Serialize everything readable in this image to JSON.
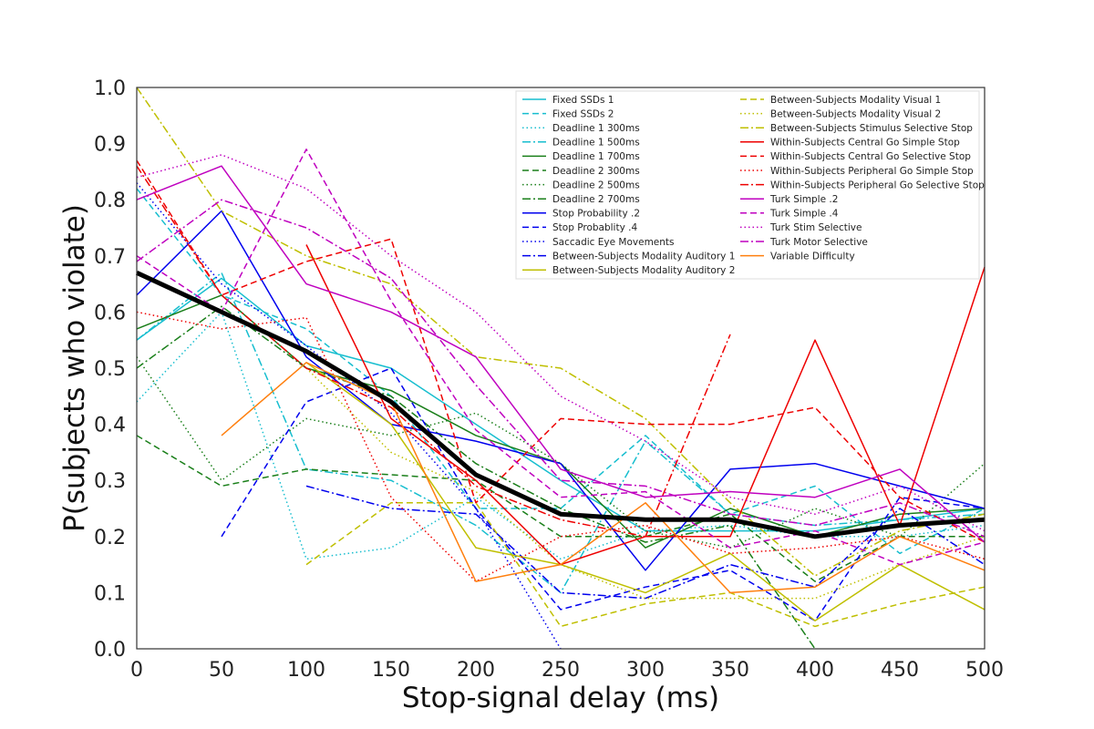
{
  "chart_data": {
    "type": "line",
    "title": "",
    "xlabel": "Stop-signal delay (ms)",
    "ylabel": "P(subjects who violate)",
    "xlim": [
      0,
      500
    ],
    "ylim": [
      0,
      1
    ],
    "xticks": [
      0,
      50,
      100,
      150,
      200,
      250,
      300,
      350,
      400,
      450,
      500
    ],
    "yticks": [
      "0.0",
      "0.1",
      "0.2",
      "0.3",
      "0.4",
      "0.5",
      "0.6",
      "0.7",
      "0.8",
      "0.9",
      "1.0"
    ],
    "grid": false,
    "legend_position": "top-right",
    "x": [
      0,
      50,
      100,
      150,
      200,
      250,
      300,
      350,
      400,
      450,
      500
    ],
    "series": [
      {
        "name": "Fixed SSDs 1",
        "color": "#17becf",
        "dash": "solid",
        "values": [
          0.55,
          0.66,
          0.54,
          0.5,
          0.4,
          0.3,
          0.21,
          0.21,
          0.21,
          0.23,
          0.25
        ]
      },
      {
        "name": "Fixed SSDs 2",
        "color": "#17becf",
        "dash": "dashed",
        "values": [
          0.82,
          0.63,
          0.57,
          0.45,
          0.25,
          0.25,
          0.38,
          0.24,
          0.29,
          0.17,
          0.25
        ]
      },
      {
        "name": "Deadline 1 300ms",
        "color": "#17becf",
        "dash": "dotted",
        "values": [
          0.44,
          0.6,
          0.16,
          0.18,
          0.27,
          0.16,
          0.21,
          0.22,
          0.2,
          0.2,
          0.22
        ]
      },
      {
        "name": "Deadline 1 500ms",
        "color": "#17becf",
        "dash": "dashdot",
        "values": [
          0.55,
          0.67,
          0.32,
          0.3,
          0.22,
          0.1,
          0.37,
          0.24,
          0.22,
          0.23,
          0.24
        ]
      },
      {
        "name": "Deadline 1 700ms",
        "color": "#1a7f1a",
        "dash": "solid",
        "values": [
          0.57,
          0.63,
          0.5,
          0.46,
          0.38,
          0.33,
          0.18,
          0.25,
          0.2,
          0.24,
          0.25
        ]
      },
      {
        "name": "Deadline 2 300ms",
        "color": "#1a7f1a",
        "dash": "dashed",
        "values": [
          0.38,
          0.29,
          0.32,
          0.31,
          0.3,
          0.2,
          0.2,
          0.24,
          0.12,
          0.2,
          0.2
        ]
      },
      {
        "name": "Deadline 2 500ms",
        "color": "#1a7f1a",
        "dash": "dotted",
        "values": [
          0.52,
          0.3,
          0.41,
          0.38,
          0.42,
          0.33,
          0.21,
          0.18,
          0.25,
          0.2,
          0.33
        ]
      },
      {
        "name": "Deadline 2 700ms",
        "color": "#1a7f1a",
        "dash": "dashdot",
        "values": [
          0.5,
          0.61,
          0.5,
          0.45,
          0.33,
          0.25,
          0.19,
          0.22,
          0.0,
          null,
          0.34
        ]
      },
      {
        "name": "Stop Probability .2",
        "color": "#0000ee",
        "dash": "solid",
        "values": [
          0.63,
          0.78,
          0.52,
          0.4,
          0.37,
          0.33,
          0.14,
          0.32,
          0.33,
          0.29,
          0.25
        ]
      },
      {
        "name": "Stop Probablity .4",
        "color": "#0000ee",
        "dash": "dashed",
        "values": [
          null,
          0.2,
          0.44,
          0.5,
          0.25,
          0.07,
          0.11,
          0.14,
          0.05,
          0.27,
          0.25
        ]
      },
      {
        "name": "Saccadic Eye Movements",
        "color": "#0000ee",
        "dash": "dotted",
        "values": [
          0.83,
          0.65,
          0.54,
          0.42,
          0.25,
          0.0,
          null,
          null,
          null,
          null,
          null
        ]
      },
      {
        "name": "Between-Subjects Modality Auditory 1",
        "color": "#0000ee",
        "dash": "dashdot",
        "values": [
          null,
          null,
          0.29,
          0.25,
          0.24,
          0.1,
          0.09,
          0.15,
          0.11,
          0.25,
          0.15
        ]
      },
      {
        "name": "Between-Subjects Modality Auditory 2",
        "color": "#bfbf00",
        "dash": "solid",
        "values": [
          null,
          null,
          0.51,
          0.4,
          0.18,
          0.15,
          0.1,
          0.17,
          0.05,
          0.15,
          0.07
        ]
      },
      {
        "name": "Between-Subjects Modality Visual 1",
        "color": "#bfbf00",
        "dash": "dashed",
        "values": [
          null,
          null,
          0.15,
          0.26,
          0.26,
          0.04,
          0.08,
          0.1,
          0.04,
          0.08,
          0.11
        ]
      },
      {
        "name": "Between-Subjects Modality Visual 2",
        "color": "#bfbf00",
        "dash": "dotted",
        "values": [
          null,
          null,
          0.5,
          0.35,
          0.28,
          0.15,
          0.09,
          0.09,
          0.09,
          0.15,
          0.2
        ]
      },
      {
        "name": "Between-Subjects Stimulus Selective Stop",
        "color": "#bfbf00",
        "dash": "dashdot",
        "values": [
          1.0,
          0.78,
          0.7,
          0.65,
          0.52,
          0.5,
          0.41,
          0.26,
          0.13,
          0.21,
          0.24
        ]
      },
      {
        "name": "Within-Subjects Central Go Simple Stop",
        "color": "#ee0000",
        "dash": "solid",
        "values": [
          null,
          null,
          0.72,
          0.41,
          0.3,
          0.15,
          0.2,
          0.2,
          0.55,
          0.22,
          0.68
        ]
      },
      {
        "name": "Within-Subjects Central Go Selective Stop",
        "color": "#ee0000",
        "dash": "dashed",
        "values": [
          0.87,
          0.63,
          0.69,
          0.73,
          0.26,
          0.41,
          0.4,
          0.4,
          0.43,
          0.27,
          0.19
        ]
      },
      {
        "name": "Within-Subjects Peripheral Go Simple Stop",
        "color": "#ee0000",
        "dash": "dotted",
        "values": [
          0.6,
          0.57,
          0.59,
          0.27,
          0.12,
          0.2,
          0.22,
          0.17,
          0.18,
          0.2,
          0.16
        ]
      },
      {
        "name": "Within-Subjects Peripheral Go Selective Stop",
        "color": "#ee0000",
        "dash": "dashdot",
        "values": [
          0.86,
          0.63,
          0.5,
          0.43,
          0.29,
          0.23,
          0.2,
          0.56,
          null,
          null,
          null
        ]
      },
      {
        "name": "Turk Simple .2",
        "color": "#bf00bf",
        "dash": "solid",
        "values": [
          0.8,
          0.86,
          0.65,
          0.6,
          0.52,
          0.32,
          0.27,
          0.28,
          0.27,
          0.32,
          0.19
        ]
      },
      {
        "name": "Turk Simple .4",
        "color": "#bf00bf",
        "dash": "dashed",
        "values": [
          0.7,
          0.6,
          0.89,
          0.62,
          0.39,
          0.27,
          0.28,
          0.18,
          0.21,
          0.15,
          0.19
        ]
      },
      {
        "name": "Turk Stim Selective",
        "color": "#bf00bf",
        "dash": "dotted",
        "values": [
          0.84,
          0.88,
          0.82,
          0.7,
          0.6,
          0.45,
          0.37,
          0.27,
          0.24,
          0.29,
          0.21
        ]
      },
      {
        "name": "Turk Motor Selective",
        "color": "#bf00bf",
        "dash": "dashdot",
        "values": [
          0.69,
          0.8,
          0.75,
          0.66,
          0.47,
          0.3,
          0.29,
          0.24,
          0.22,
          0.26,
          0.2
        ]
      },
      {
        "name": "Variable Difficulty",
        "color": "#ff7f0e",
        "dash": "solid",
        "values": [
          null,
          0.38,
          0.51,
          0.44,
          0.12,
          0.15,
          0.26,
          0.1,
          0.11,
          0.2,
          0.14
        ]
      },
      {
        "name": "",
        "color": "#000000",
        "dash": "solid",
        "width": 5,
        "values": [
          0.67,
          0.6,
          0.53,
          0.44,
          0.31,
          0.24,
          0.23,
          0.23,
          0.2,
          0.22,
          0.23
        ]
      }
    ]
  }
}
